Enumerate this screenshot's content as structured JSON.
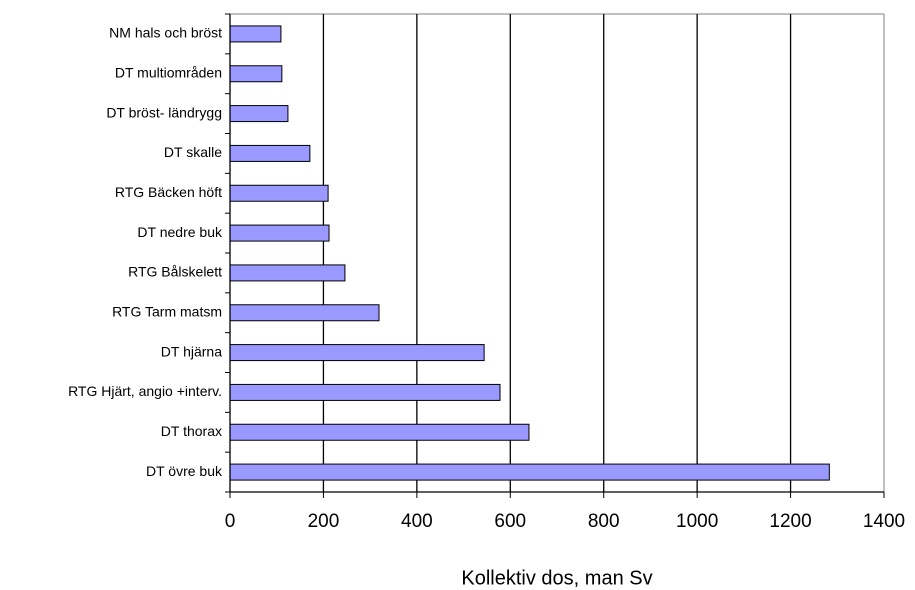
{
  "chart_data": {
    "type": "barh",
    "x_label": "Kollektiv dos, man Sv",
    "categories": [
      "NM hals och bröst",
      "DT multiområden",
      "DT bröst- ländrygg",
      "DT skalle",
      "RTG Bäcken höft",
      "DT nedre buk",
      "RTG Bålskelett",
      "RTG Tarm matsm",
      "DT hjärna",
      "RTG Hjärt, angio +interv.",
      "DT thorax",
      "DT övre buk"
    ],
    "values": [
      109,
      111,
      124,
      171,
      210,
      212,
      246,
      319,
      544,
      578,
      640,
      1283
    ],
    "color": "#9999ff",
    "xlim": [
      0,
      1400
    ],
    "xticks": [
      0,
      200,
      400,
      600,
      800,
      1000,
      1200,
      1400
    ],
    "grid": true
  }
}
